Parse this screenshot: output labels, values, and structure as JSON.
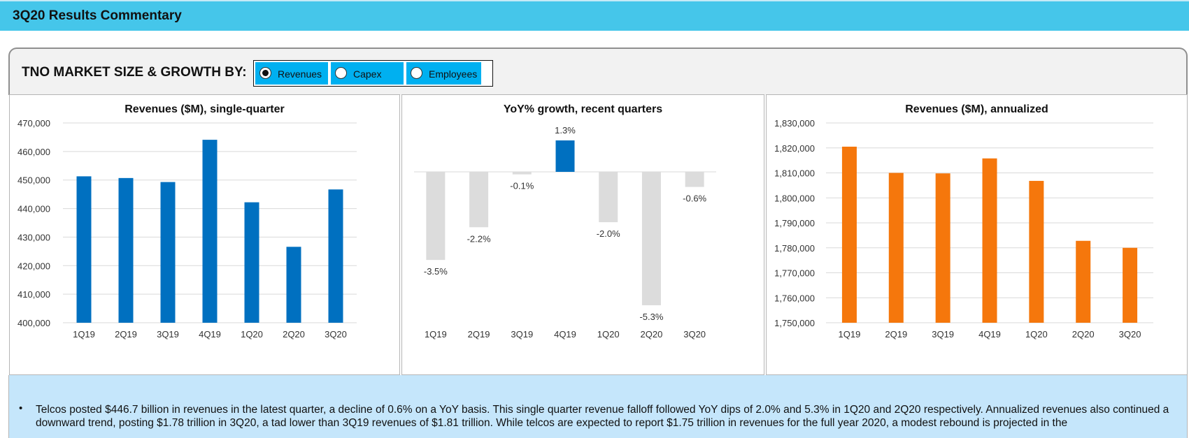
{
  "page": {
    "title": "3Q20 Results Commentary"
  },
  "selector": {
    "label": "TNO MARKET SIZE & GROWTH BY:",
    "options": [
      {
        "label": "Revenues",
        "checked": true
      },
      {
        "label": "Capex",
        "checked": false
      },
      {
        "label": "Employees",
        "checked": false
      }
    ]
  },
  "colors": {
    "header": "#45c6ea",
    "selector_option": "#00b0f0",
    "bar_blue": "#0070c0",
    "bar_orange": "#f5770c",
    "bar_grey": "#dcdcdc",
    "commentary_bg": "#c5e6fb"
  },
  "chart_data": [
    {
      "type": "bar",
      "title": "Revenues ($M), single-quarter",
      "categories": [
        "1Q19",
        "2Q19",
        "3Q19",
        "4Q19",
        "1Q20",
        "2Q20",
        "3Q20"
      ],
      "values": [
        451300,
        450700,
        449300,
        464100,
        442200,
        426600,
        446700
      ],
      "ylim": [
        400000,
        470000
      ],
      "yticks": [
        400000,
        410000,
        420000,
        430000,
        440000,
        450000,
        460000,
        470000
      ],
      "ytick_labels": [
        "400,000",
        "410,000",
        "420,000",
        "430,000",
        "440,000",
        "450,000",
        "460,000",
        "470,000"
      ],
      "grid": true,
      "color": "#0070c0"
    },
    {
      "type": "bar",
      "title": "YoY% growth, recent quarters",
      "categories": [
        "1Q19",
        "2Q19",
        "3Q19",
        "4Q19",
        "1Q20",
        "2Q20",
        "3Q20"
      ],
      "values": [
        -3.5,
        -2.2,
        -0.1,
        1.3,
        -2.0,
        -5.3,
        -0.6
      ],
      "data_labels": [
        "-3.5%",
        "-2.2%",
        "-0.1%",
        "1.3%",
        "-2.0%",
        "-5.3%",
        "-0.6%"
      ],
      "highlight_index": 3,
      "ylim": [
        -5.3,
        1.3
      ],
      "grid": false,
      "color": "#dcdcdc",
      "highlight_color": "#0070c0"
    },
    {
      "type": "bar",
      "title": "Revenues ($M), annualized",
      "categories": [
        "1Q19",
        "2Q19",
        "3Q19",
        "4Q19",
        "1Q20",
        "2Q20",
        "3Q20"
      ],
      "values": [
        1820500,
        1810000,
        1809800,
        1815800,
        1806800,
        1782800,
        1780000
      ],
      "ylim": [
        1750000,
        1830000
      ],
      "yticks": [
        1750000,
        1760000,
        1770000,
        1780000,
        1790000,
        1800000,
        1810000,
        1820000,
        1830000
      ],
      "ytick_labels": [
        "1,750,000",
        "1,760,000",
        "1,770,000",
        "1,780,000",
        "1,790,000",
        "1,800,000",
        "1,810,000",
        "1,820,000",
        "1,830,000"
      ],
      "grid": true,
      "color": "#f5770c"
    }
  ],
  "commentary": {
    "bullet": "•",
    "text": "Telcos posted $446.7 billion in revenues in the latest quarter, a decline of 0.6% on a YoY basis. This single quarter revenue falloff followed YoY dips of 2.0% and 5.3% in 1Q20 and 2Q20 respectively. Annualized revenues also continued a downward trend, posting $1.78 trillion in 3Q20, a tad lower than 3Q19 revenues of $1.81 trillion. While telcos are expected to report $1.75 trillion in revenues for the full year 2020, a modest rebound is projected in the"
  }
}
